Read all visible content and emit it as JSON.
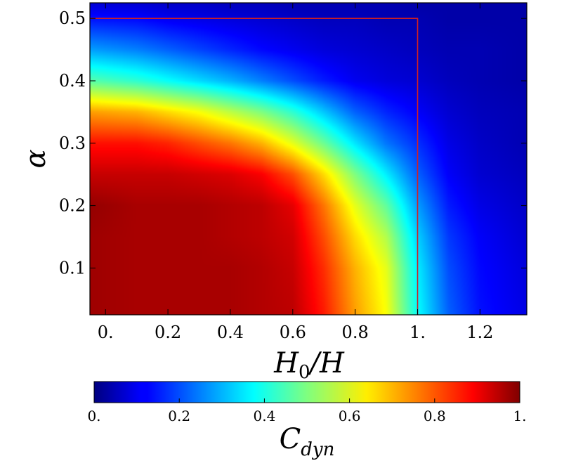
{
  "chart_data": {
    "type": "heatmap",
    "title": "",
    "xlabel": "H0/H",
    "xlabel_parts": {
      "main": "H",
      "sub": "0",
      "rest": "/H"
    },
    "ylabel": "α",
    "colorbar_label": "C_dyn",
    "colorbar_label_parts": {
      "main": "C",
      "sub": "dyn"
    },
    "colormap": "jet",
    "xlim": [
      -0.05,
      1.35
    ],
    "ylim": [
      0.025,
      0.525
    ],
    "x_ticks": [
      0,
      0.2,
      0.4,
      0.6,
      0.8,
      1.0,
      1.2
    ],
    "x_tick_labels": [
      "0.",
      "0.2",
      "0.4",
      "0.6",
      "0.8",
      "1.",
      "1.2"
    ],
    "y_ticks": [
      0.1,
      0.2,
      0.3,
      0.4,
      0.5
    ],
    "y_tick_labels": [
      "0.1",
      "0.2",
      "0.3",
      "0.4",
      "0.5"
    ],
    "colorbar_range": [
      0,
      1
    ],
    "colorbar_ticks": [
      0,
      0.2,
      0.4,
      0.6,
      0.8,
      1.0
    ],
    "colorbar_tick_labels": [
      "0.",
      "0.2",
      "0.4",
      "0.6",
      "0.8",
      "1."
    ],
    "x_grid": [
      -0.05,
      0.1,
      0.2,
      0.3,
      0.4,
      0.5,
      0.6,
      0.7,
      0.8,
      0.9,
      1.0,
      1.1,
      1.2,
      1.35
    ],
    "y_grid": [
      0.025,
      0.1,
      0.15,
      0.2,
      0.25,
      0.3,
      0.35,
      0.4,
      0.45,
      0.5,
      0.525
    ],
    "z": [
      [
        0.97,
        0.96,
        0.96,
        0.96,
        0.96,
        0.95,
        0.94,
        0.85,
        0.72,
        0.62,
        0.38,
        0.22,
        0.14,
        0.1
      ],
      [
        0.97,
        0.96,
        0.96,
        0.96,
        0.96,
        0.95,
        0.93,
        0.83,
        0.7,
        0.6,
        0.36,
        0.2,
        0.13,
        0.09
      ],
      [
        0.97,
        0.96,
        0.96,
        0.96,
        0.95,
        0.94,
        0.92,
        0.8,
        0.66,
        0.55,
        0.33,
        0.18,
        0.12,
        0.08
      ],
      [
        0.98,
        0.96,
        0.96,
        0.96,
        0.95,
        0.94,
        0.9,
        0.76,
        0.6,
        0.47,
        0.28,
        0.15,
        0.1,
        0.07
      ],
      [
        0.93,
        0.93,
        0.93,
        0.92,
        0.91,
        0.88,
        0.8,
        0.66,
        0.5,
        0.36,
        0.22,
        0.12,
        0.08,
        0.06
      ],
      [
        0.86,
        0.86,
        0.84,
        0.8,
        0.76,
        0.7,
        0.6,
        0.48,
        0.35,
        0.24,
        0.17,
        0.1,
        0.07,
        0.05
      ],
      [
        0.72,
        0.7,
        0.66,
        0.62,
        0.56,
        0.5,
        0.42,
        0.32,
        0.22,
        0.16,
        0.12,
        0.08,
        0.06,
        0.05
      ],
      [
        0.46,
        0.42,
        0.38,
        0.34,
        0.3,
        0.25,
        0.2,
        0.15,
        0.11,
        0.09,
        0.08,
        0.06,
        0.05,
        0.04
      ],
      [
        0.28,
        0.25,
        0.22,
        0.19,
        0.16,
        0.13,
        0.11,
        0.09,
        0.08,
        0.07,
        0.06,
        0.05,
        0.05,
        0.04
      ],
      [
        0.14,
        0.13,
        0.11,
        0.1,
        0.09,
        0.08,
        0.07,
        0.06,
        0.06,
        0.05,
        0.05,
        0.04,
        0.04,
        0.04
      ],
      [
        0.08,
        0.08,
        0.07,
        0.07,
        0.06,
        0.06,
        0.05,
        0.05,
        0.05,
        0.05,
        0.04,
        0.04,
        0.04,
        0.04
      ]
    ],
    "boundary_line": {
      "color": "#d32020",
      "points": [
        [
          -0.05,
          0.5
        ],
        [
          1.0,
          0.5
        ],
        [
          1.0,
          0.025
        ]
      ]
    }
  }
}
